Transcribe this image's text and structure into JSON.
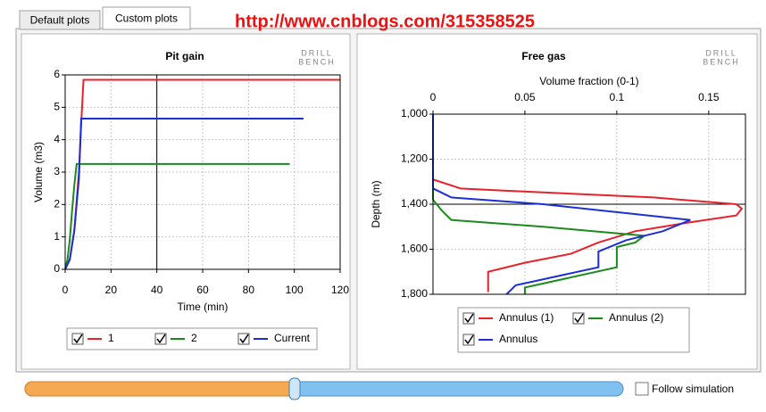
{
  "tabs": [
    "Default plots",
    "Custom plots"
  ],
  "active_tab": 1,
  "watermark": "http://www.cnblogs.com/315358525",
  "logo": [
    "DRILL",
    "BENCH"
  ],
  "follow_simulation": "Follow simulation",
  "chart_data": [
    {
      "type": "line",
      "title": "Pit gain",
      "xlabel": "Time (min)",
      "ylabel": "Volume (m3)",
      "xlim": [
        0,
        120
      ],
      "xticks": [
        0,
        20,
        40,
        60,
        80,
        100,
        120
      ],
      "ylim": [
        0,
        6
      ],
      "yticks": [
        0,
        1,
        2,
        3,
        4,
        5,
        6
      ],
      "grid": true,
      "cursor_x": 40,
      "series": [
        {
          "name": "1",
          "color": "#e8222a",
          "x": [
            0,
            2,
            4,
            6,
            7,
            8,
            120
          ],
          "values": [
            0,
            0.3,
            1.2,
            3,
            4.5,
            5.85,
            5.85
          ]
        },
        {
          "name": "2",
          "color": "#1a8a1a",
          "x": [
            0,
            1,
            2,
            3,
            4,
            5,
            98
          ],
          "values": [
            0,
            0.3,
            0.9,
            1.8,
            2.6,
            3.25,
            3.25
          ]
        },
        {
          "name": "Current",
          "color": "#1c2fd6",
          "x": [
            0,
            2,
            4,
            6,
            7,
            104
          ],
          "values": [
            0,
            0.3,
            1.2,
            2.8,
            4.65,
            4.65
          ]
        }
      ]
    },
    {
      "type": "line",
      "title": "Free gas",
      "xlabel": "Volume fraction (0-1)",
      "ylabel": "Depth (m)",
      "x_axis_position": "top",
      "xlim": [
        0,
        0.17
      ],
      "xticks": [
        0,
        0.05,
        0.1,
        0.15
      ],
      "ylim": [
        1800,
        1000
      ],
      "yticks": [
        {
          "value": 1000,
          "label": "1,000"
        },
        {
          "value": 1200,
          "label": "1,200"
        },
        {
          "value": 1400,
          "label": "1,400"
        },
        {
          "value": 1600,
          "label": "1,600"
        },
        {
          "value": 1800,
          "label": "1,800"
        }
      ],
      "grid": true,
      "cursor_y": 1400,
      "series": [
        {
          "name": "Annulus (1)",
          "color": "#e8222a",
          "x": [
            0,
            0,
            0.015,
            0.04,
            0.12,
            0.165,
            0.168,
            0.165,
            0.14,
            0.11,
            0.09,
            0.075,
            0.05,
            0.03,
            0.03
          ],
          "values": [
            1000,
            1290,
            1330,
            1340,
            1370,
            1400,
            1420,
            1450,
            1480,
            1520,
            1570,
            1620,
            1660,
            1700,
            1790
          ]
        },
        {
          "name": "Annulus (2)",
          "color": "#1a8a1a",
          "x": [
            0,
            0,
            0.005,
            0.01,
            0.06,
            0.115,
            0.11,
            0.1,
            0.1,
            0.05,
            0.05
          ],
          "values": [
            1000,
            1380,
            1430,
            1470,
            1500,
            1540,
            1570,
            1590,
            1680,
            1770,
            1800
          ]
        },
        {
          "name": "Annulus",
          "color": "#1c2fd6",
          "x": [
            0,
            0,
            0.01,
            0.06,
            0.14,
            0.125,
            0.105,
            0.09,
            0.09,
            0.045,
            0.04
          ],
          "values": [
            1000,
            1330,
            1370,
            1400,
            1470,
            1520,
            1560,
            1610,
            1680,
            1760,
            1800
          ]
        }
      ]
    }
  ]
}
